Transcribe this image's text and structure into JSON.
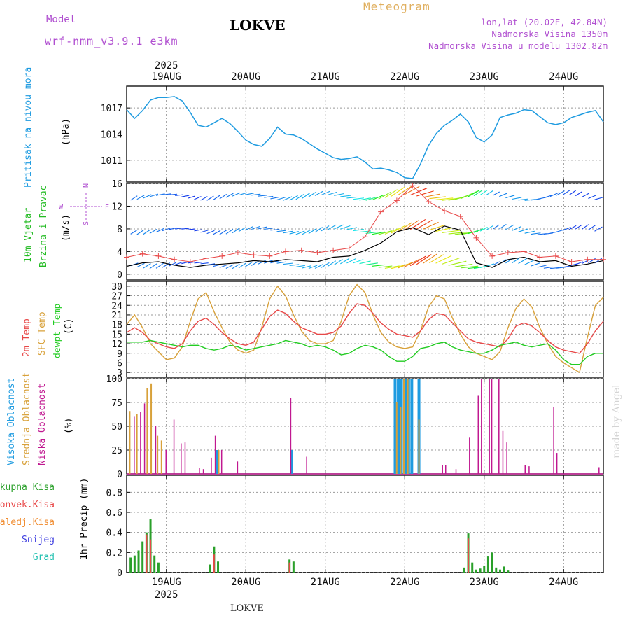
{
  "header": {
    "model_label": "Model",
    "model_name": "wrf-nmm_v3.9.1  e3km",
    "station": "LOKVE",
    "title": "Meteogram",
    "coords": "lon,lat (20.02E, 42.84N)",
    "altitude": "Nadmorska Visina 1350m",
    "model_altitude": "Nadmorska Visina u modelu 1302.82m",
    "footer_station": "LOKVE",
    "watermark": "made by Angel",
    "year": "2025"
  },
  "colors": {
    "pressure": "#1e9be0",
    "wind_label": "#22bb22",
    "temp2m": "#e84848",
    "sfc": "#d8a13a",
    "dew": "#22cc22",
    "high_cloud": "#1e9be0",
    "mid_cloud": "#d8a13a",
    "low_cloud": "#c01890",
    "total_precip": "#2aa02a",
    "conv_precip": "#e84848",
    "frz_precip": "#f08c30",
    "snow": "#4040e0",
    "hail": "#20c0b0",
    "compass": "#b04fd0",
    "title": "#e0b060",
    "model": "#b04fd0"
  },
  "chart_data": [
    {
      "type": "line",
      "id": "pressure",
      "ylabel": "Pritisak na nivou mora",
      "unit": "(hPa)",
      "yticks": [
        1011,
        1014,
        1017
      ],
      "ylim": [
        1008.5,
        1019.5
      ],
      "x_days": [
        "19AUG",
        "20AUG",
        "21AUG",
        "22AUG",
        "23AUG",
        "24AUG"
      ],
      "x": [
        18.5,
        18.6,
        18.7,
        18.8,
        18.9,
        19.0,
        19.1,
        19.2,
        19.3,
        19.4,
        19.5,
        19.6,
        19.7,
        19.8,
        19.9,
        20.0,
        20.1,
        20.2,
        20.3,
        20.4,
        20.5,
        20.6,
        20.7,
        20.8,
        20.9,
        21.0,
        21.1,
        21.2,
        21.3,
        21.4,
        21.5,
        21.6,
        21.7,
        21.8,
        21.9,
        22.0,
        22.1,
        22.2,
        22.3,
        22.4,
        22.5,
        22.6,
        22.7,
        22.8,
        22.9,
        23.0,
        23.1,
        23.2,
        23.3,
        23.4,
        23.5,
        23.6,
        23.7,
        23.8,
        23.9,
        24.0,
        24.1,
        24.2,
        24.3,
        24.4,
        24.5
      ],
      "values": [
        1016.8,
        1015.8,
        1016.7,
        1017.9,
        1018.2,
        1018.2,
        1018.3,
        1017.8,
        1016.5,
        1015.0,
        1014.8,
        1015.3,
        1015.8,
        1015.2,
        1014.3,
        1013.3,
        1012.8,
        1012.6,
        1013.5,
        1014.8,
        1014.0,
        1013.9,
        1013.5,
        1012.9,
        1012.3,
        1011.8,
        1011.3,
        1011.1,
        1011.2,
        1011.4,
        1010.8,
        1010.0,
        1010.1,
        1009.9,
        1009.6,
        1009.0,
        1008.9,
        1010.6,
        1012.7,
        1014.1,
        1015.0,
        1015.6,
        1016.3,
        1015.4,
        1013.6,
        1013.1,
        1013.9,
        1015.9,
        1016.2,
        1016.4,
        1016.8,
        1016.7,
        1016.0,
        1015.3,
        1015.1,
        1015.3,
        1015.9,
        1016.2,
        1016.5,
        1016.7,
        1015.4
      ]
    },
    {
      "type": "line",
      "id": "wind",
      "ylabel": "10m Vjetar Brzina i Pravac",
      "unit": "(m/s)",
      "yticks": [
        0,
        4,
        8,
        12,
        16
      ],
      "ylim": [
        -1,
        16
      ],
      "compass": {
        "n": "N",
        "s": "S",
        "w": "W",
        "e": "E"
      },
      "x": [
        18.5,
        18.7,
        18.9,
        19.1,
        19.3,
        19.5,
        19.7,
        19.9,
        20.1,
        20.3,
        20.5,
        20.7,
        20.9,
        21.1,
        21.3,
        21.5,
        21.7,
        21.9,
        22.1,
        22.3,
        22.5,
        22.7,
        22.9,
        23.1,
        23.3,
        23.5,
        23.7,
        23.9,
        24.1,
        24.3,
        24.5
      ],
      "values": [
        1.4,
        2.0,
        2.2,
        1.6,
        1.2,
        1.6,
        1.8,
        2.0,
        2.4,
        2.2,
        2.6,
        2.4,
        2.2,
        3.0,
        3.2,
        4.2,
        5.5,
        7.5,
        8.2,
        7.0,
        8.5,
        7.8,
        2.0,
        1.2,
        2.6,
        3.0,
        2.2,
        2.4,
        1.4,
        1.8,
        2.4
      ],
      "gust": [
        3.0,
        3.6,
        3.2,
        2.6,
        2.2,
        2.8,
        3.2,
        3.8,
        3.4,
        3.2,
        4.0,
        4.2,
        3.8,
        4.2,
        4.6,
        6.6,
        11.0,
        13.0,
        15.6,
        12.8,
        11.2,
        10.2,
        6.4,
        3.2,
        3.8,
        4.0,
        3.0,
        3.2,
        2.2,
        2.6,
        2.6
      ]
    },
    {
      "type": "line",
      "id": "temperature",
      "ylabels": [
        "2m Temp",
        "SFC Temp",
        "dewpt Temp"
      ],
      "unit": "(C)",
      "yticks": [
        3,
        6,
        9,
        12,
        15,
        18,
        21,
        24,
        27,
        30
      ],
      "ylim": [
        1.5,
        31.5
      ],
      "x": [
        18.5,
        18.6,
        18.7,
        18.8,
        18.9,
        19.0,
        19.1,
        19.2,
        19.3,
        19.4,
        19.5,
        19.6,
        19.7,
        19.8,
        19.9,
        20.0,
        20.1,
        20.2,
        20.3,
        20.4,
        20.5,
        20.6,
        20.7,
        20.8,
        20.9,
        21.0,
        21.1,
        21.2,
        21.3,
        21.4,
        21.5,
        21.6,
        21.7,
        21.8,
        21.9,
        22.0,
        22.1,
        22.2,
        22.3,
        22.4,
        22.5,
        22.6,
        22.7,
        22.8,
        22.9,
        23.0,
        23.1,
        23.2,
        23.3,
        23.4,
        23.5,
        23.6,
        23.7,
        23.8,
        23.9,
        24.0,
        24.1,
        24.2,
        24.3,
        24.4,
        24.5
      ],
      "t2m": [
        15.5,
        17.0,
        15.5,
        13.0,
        12.0,
        11.0,
        10.5,
        12.0,
        16.0,
        19.0,
        20.0,
        18.0,
        15.5,
        13.5,
        12.0,
        11.5,
        12.5,
        16.5,
        20.5,
        22.5,
        21.5,
        19.0,
        17.0,
        16.0,
        15.0,
        15.0,
        15.5,
        17.5,
        21.5,
        24.5,
        24.0,
        21.5,
        18.5,
        16.5,
        15.0,
        14.5,
        14.0,
        16.0,
        19.5,
        21.5,
        21.0,
        18.5,
        16.0,
        13.5,
        12.5,
        12.0,
        11.5,
        11.0,
        13.5,
        17.5,
        18.5,
        17.5,
        15.5,
        13.0,
        11.0,
        10.0,
        9.5,
        9.0,
        12.0,
        16.0,
        19.0
      ],
      "sfc": [
        18.0,
        21.0,
        17.0,
        12.0,
        9.5,
        7.0,
        7.5,
        11.0,
        19.0,
        26.0,
        28.0,
        22.0,
        17.0,
        12.5,
        10.0,
        9.0,
        10.0,
        17.0,
        26.0,
        30.0,
        27.0,
        21.0,
        16.0,
        13.0,
        12.0,
        12.0,
        13.0,
        19.0,
        27.0,
        30.5,
        28.0,
        21.0,
        15.5,
        12.5,
        11.0,
        10.5,
        11.0,
        16.0,
        23.5,
        27.0,
        26.0,
        20.0,
        15.0,
        11.0,
        9.0,
        8.0,
        7.0,
        9.5,
        17.0,
        23.0,
        26.0,
        23.5,
        17.0,
        12.0,
        8.0,
        6.0,
        4.5,
        3.0,
        14.0,
        24.0,
        26.5
      ],
      "dew": [
        12.5,
        12.5,
        12.5,
        13.0,
        12.5,
        12.0,
        11.5,
        11.0,
        11.5,
        11.5,
        10.5,
        10.0,
        10.5,
        11.5,
        11.0,
        10.0,
        10.5,
        11.0,
        11.5,
        12.0,
        13.0,
        12.5,
        12.0,
        11.0,
        11.5,
        11.0,
        10.0,
        8.5,
        9.0,
        10.5,
        11.5,
        11.0,
        10.0,
        8.0,
        6.5,
        6.5,
        8.0,
        10.5,
        11.0,
        12.0,
        12.5,
        11.0,
        10.0,
        9.5,
        9.0,
        9.0,
        10.0,
        11.5,
        12.0,
        12.5,
        11.5,
        11.0,
        11.5,
        12.0,
        10.0,
        7.0,
        5.5,
        5.5,
        8.0,
        9.0,
        9.0
      ]
    },
    {
      "type": "bar",
      "id": "clouds",
      "ylabels": [
        "Visoka Oblacnost",
        "Srednja Oblacnost",
        "Niska Oblacnost"
      ],
      "unit": "(%)",
      "yticks": [
        0,
        25,
        50,
        75,
        100
      ],
      "ylim": [
        0,
        100
      ],
      "high": [
        [
          21.87,
          100
        ],
        [
          21.91,
          100
        ],
        [
          21.95,
          100
        ],
        [
          22.0,
          100
        ],
        [
          22.04,
          100
        ],
        [
          22.08,
          100
        ],
        [
          22.17,
          100
        ],
        [
          19.63,
          25
        ],
        [
          20.57,
          25
        ]
      ],
      "mid": [
        [
          18.53,
          66
        ],
        [
          18.62,
          63
        ],
        [
          18.75,
          90
        ],
        [
          18.8,
          95
        ],
        [
          18.88,
          40
        ],
        [
          18.93,
          35
        ],
        [
          21.89,
          75
        ],
        [
          21.94,
          70
        ],
        [
          21.98,
          100
        ],
        [
          22.03,
          100
        ],
        [
          22.17,
          57
        ],
        [
          19.65,
          25
        ]
      ],
      "low": [
        [
          18.58,
          60
        ],
        [
          18.66,
          65
        ],
        [
          18.71,
          74
        ],
        [
          18.85,
          50
        ],
        [
          18.98,
          25
        ],
        [
          19.08,
          57
        ],
        [
          19.17,
          32
        ],
        [
          19.22,
          33
        ],
        [
          19.4,
          6
        ],
        [
          19.45,
          5
        ],
        [
          19.55,
          17
        ],
        [
          19.6,
          40
        ],
        [
          19.68,
          25
        ],
        [
          19.88,
          13
        ],
        [
          20.55,
          80
        ],
        [
          20.75,
          18
        ],
        [
          22.46,
          9
        ],
        [
          22.5,
          9
        ],
        [
          22.63,
          5
        ],
        [
          22.8,
          38
        ],
        [
          22.91,
          82
        ],
        [
          22.95,
          100
        ],
        [
          23.05,
          100
        ],
        [
          23.08,
          100
        ],
        [
          23.17,
          100
        ],
        [
          23.22,
          45
        ],
        [
          23.27,
          33
        ],
        [
          23.5,
          9
        ],
        [
          23.55,
          8
        ],
        [
          23.86,
          70
        ],
        [
          23.9,
          22
        ],
        [
          24.43,
          7
        ]
      ]
    },
    {
      "type": "bar",
      "id": "precip",
      "ylabels": [
        "Ukupna Kisa",
        "Konvek.Kisa",
        "Zaledj.Kisa",
        "Snijeg",
        "Grad"
      ],
      "unit": "1hr Precip (mm)",
      "yticks": [
        0,
        0.2,
        0.4,
        0.6,
        0.8
      ],
      "ylim": [
        0,
        0.97
      ],
      "total": [
        [
          18.55,
          0.15
        ],
        [
          18.6,
          0.17
        ],
        [
          18.65,
          0.22
        ],
        [
          18.7,
          0.31
        ],
        [
          18.75,
          0.4
        ],
        [
          18.8,
          0.53
        ],
        [
          18.85,
          0.17
        ],
        [
          18.9,
          0.1
        ],
        [
          19.55,
          0.08
        ],
        [
          19.6,
          0.26
        ],
        [
          19.65,
          0.11
        ],
        [
          20.55,
          0.13
        ],
        [
          20.6,
          0.11
        ],
        [
          22.75,
          0.05
        ],
        [
          22.8,
          0.39
        ],
        [
          22.85,
          0.1
        ],
        [
          22.9,
          0.03
        ],
        [
          22.95,
          0.04
        ],
        [
          23.0,
          0.07
        ],
        [
          23.05,
          0.16
        ],
        [
          23.1,
          0.2
        ],
        [
          23.15,
          0.05
        ],
        [
          23.2,
          0.03
        ],
        [
          23.25,
          0.06
        ],
        [
          23.3,
          0.02
        ]
      ],
      "convective": [
        [
          18.75,
          0.38
        ],
        [
          18.8,
          0.33
        ],
        [
          19.6,
          0.18
        ],
        [
          20.55,
          0.1
        ],
        [
          22.8,
          0.34
        ]
      ]
    }
  ]
}
